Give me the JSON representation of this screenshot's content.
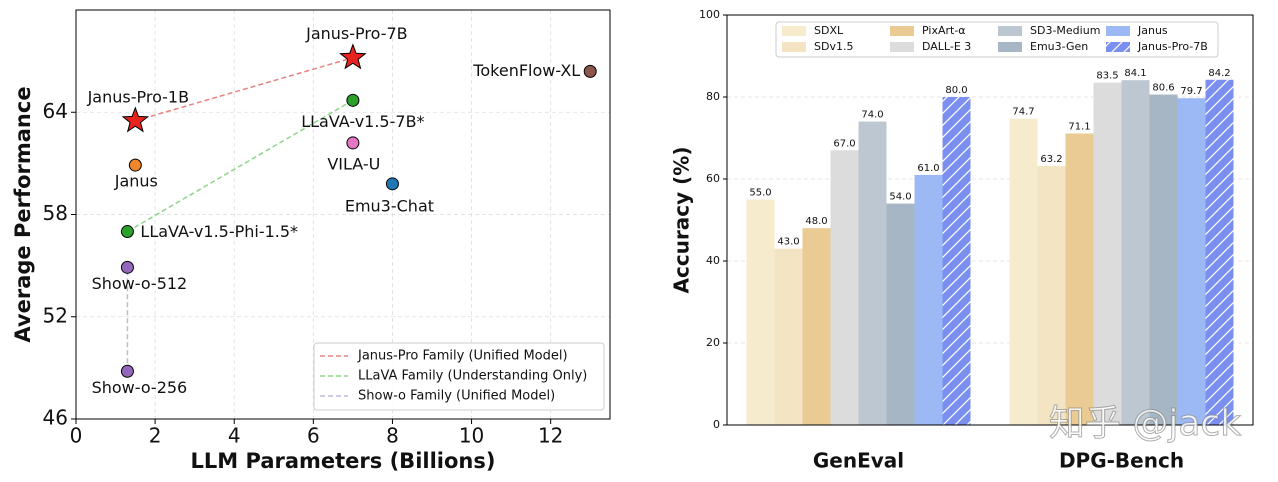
{
  "chart_data": [
    {
      "type": "scatter",
      "xlabel": "LLM Parameters (Billions)",
      "ylabel": "Average Performance",
      "xlim": [
        0,
        13.5
      ],
      "ylim": [
        46,
        70
      ],
      "xticks": [
        0,
        2,
        4,
        6,
        8,
        10,
        12
      ],
      "yticks": [
        46,
        52,
        58,
        64
      ],
      "grid": true,
      "legend_position": "lower right",
      "points": [
        {
          "label": "Janus-Pro-7B",
          "x": 7,
          "y": 67.2,
          "color": "#e8231f",
          "marker": "star"
        },
        {
          "label": "Janus-Pro-1B",
          "x": 1.5,
          "y": 63.5,
          "color": "#e8231f",
          "marker": "star"
        },
        {
          "label": "Janus",
          "x": 1.5,
          "y": 60.9,
          "color": "#f0862a",
          "marker": "circle"
        },
        {
          "label": "LLaVA-v1.5-7B*",
          "x": 7,
          "y": 64.7,
          "color": "#2ca02c",
          "marker": "circle"
        },
        {
          "label": "VILA-U",
          "x": 7,
          "y": 62.2,
          "color": "#e377c2",
          "marker": "circle"
        },
        {
          "label": "Emu3-Chat",
          "x": 8,
          "y": 59.8,
          "color": "#1f77b4",
          "marker": "circle"
        },
        {
          "label": "TokenFlow-XL",
          "x": 13,
          "y": 66.4,
          "color": "#8c564b",
          "marker": "circle"
        },
        {
          "label": "LLaVA-v1.5-Phi-1.5*",
          "x": 1.3,
          "y": 57.0,
          "color": "#2ca02c",
          "marker": "circle"
        },
        {
          "label": "Show-o-512",
          "x": 1.3,
          "y": 54.9,
          "color": "#9467bd",
          "marker": "circle"
        },
        {
          "label": "Show-o-256",
          "x": 1.3,
          "y": 48.8,
          "color": "#9467bd",
          "marker": "circle"
        }
      ],
      "series": [
        {
          "name": "Janus-Pro Family (Unified Model)",
          "color": "#e8827f",
          "x": [
            1.5,
            7
          ],
          "values": [
            63.5,
            67.2
          ]
        },
        {
          "name": "LLaVA Family (Understanding Only)",
          "color": "#8fd48a",
          "x": [
            1.3,
            7
          ],
          "values": [
            57.0,
            64.7
          ]
        },
        {
          "name": "Show-o Family (Unified Model)",
          "color": "#c4b8d8",
          "x": [
            1.3,
            1.3
          ],
          "values": [
            48.8,
            54.9
          ]
        }
      ]
    },
    {
      "type": "bar",
      "ylabel": "Accuracy (%)",
      "categories": [
        "GenEval",
        "DPG-Bench"
      ],
      "ylim": [
        0,
        100
      ],
      "yticks": [
        0,
        20,
        40,
        60,
        80,
        100
      ],
      "grid": true,
      "legend_position": "upper center",
      "series": [
        {
          "name": "SDXL",
          "color": "#f7ebcd",
          "values": [
            55.0,
            74.7
          ],
          "value_labels": [
            "55.0",
            "74.7"
          ]
        },
        {
          "name": "SDv1.5",
          "color": "#f3e5c3",
          "values": [
            43.0,
            63.2
          ],
          "value_labels": [
            "43.0",
            "63.2"
          ]
        },
        {
          "name": "PixArt-α",
          "color": "#e9cb93",
          "values": [
            48.0,
            71.1
          ],
          "value_labels": [
            "48.0",
            "71.1"
          ]
        },
        {
          "name": "DALL-E 3",
          "color": "#dcdcdc",
          "values": [
            67.0,
            83.5
          ],
          "value_labels": [
            "67.0",
            "83.5"
          ]
        },
        {
          "name": "SD3-Medium",
          "color": "#bcc7d2",
          "values": [
            74.0,
            84.1
          ],
          "value_labels": [
            "74.0",
            "84.1"
          ]
        },
        {
          "name": "Emu3-Gen",
          "color": "#a7b6c4",
          "values": [
            54.0,
            80.6
          ],
          "value_labels": [
            "54.0",
            "80.6"
          ]
        },
        {
          "name": "Janus",
          "color": "#9cb9f6",
          "values": [
            61.0,
            79.7
          ],
          "value_labels": [
            "61.0",
            "79.7"
          ]
        },
        {
          "name": "Janus-Pro-7B",
          "color": "#7b8ff0",
          "hatch": true,
          "values": [
            80.0,
            84.2
          ],
          "value_labels": [
            "80.0",
            "84.2"
          ]
        }
      ]
    }
  ],
  "watermark": "知乎 @jack"
}
